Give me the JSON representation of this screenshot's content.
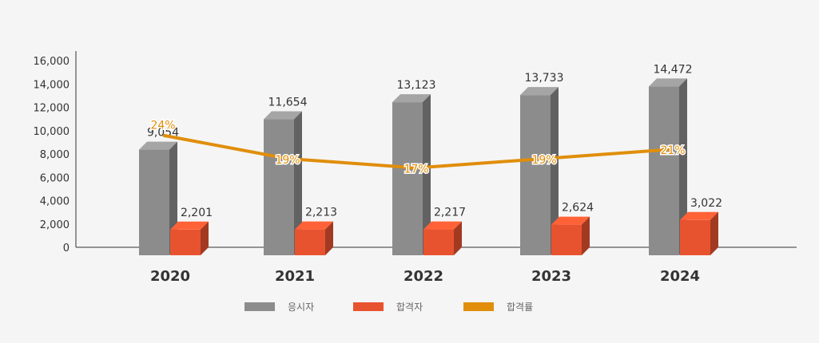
{
  "chart_data": {
    "type": "bar",
    "categories": [
      "2020",
      "2021",
      "2022",
      "2023",
      "2024"
    ],
    "series": [
      {
        "name": "응시자",
        "values": [
          9054,
          11654,
          13123,
          13733,
          14472
        ],
        "value_labels": [
          "9,054",
          "11,654",
          "13,123",
          "13,733",
          "14,472"
        ],
        "color": "#8c8c8c"
      },
      {
        "name": "합격자",
        "values": [
          2201,
          2213,
          2217,
          2624,
          3022
        ],
        "value_labels": [
          "2,201",
          "2,213",
          "2,217",
          "2,624",
          "3,022"
        ],
        "color": "#e8532f"
      },
      {
        "name": "합격률",
        "type": "line",
        "values": [
          24,
          19,
          17,
          19,
          21
        ],
        "value_labels": [
          "24%",
          "19%",
          "17%",
          "19%",
          "21%"
        ],
        "color": "#e08e0b"
      }
    ],
    "ylim": [
      0,
      16000
    ],
    "yticks": [
      0,
      2000,
      4000,
      6000,
      8000,
      10000,
      12000,
      14000,
      16000
    ],
    "ytick_labels": [
      "0",
      "2,000",
      "4,000",
      "6,000",
      "8,000",
      "10,000",
      "12,000",
      "14,000",
      "16,000"
    ],
    "legend_position": "bottom-center",
    "grid": false
  }
}
